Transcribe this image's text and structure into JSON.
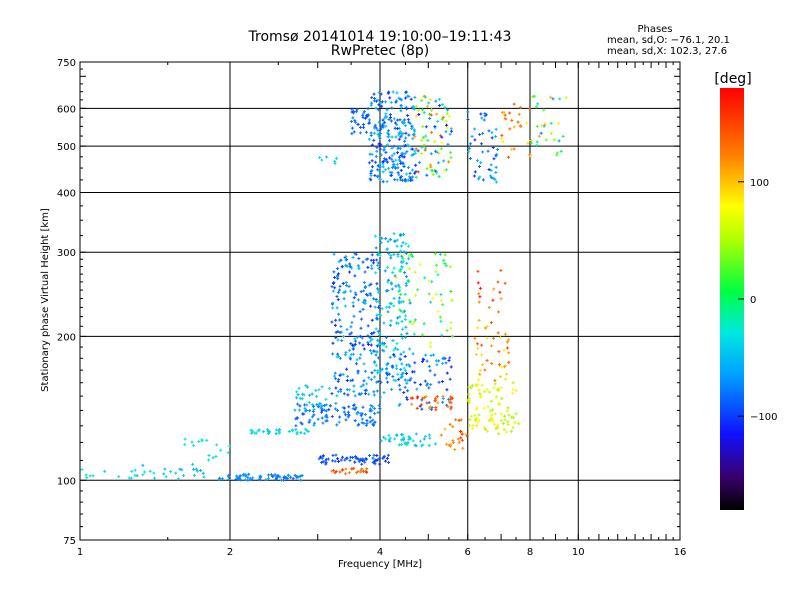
{
  "chart_data": {
    "type": "scatter",
    "title": "Tromsø 20141014 19:10:00–19:11:43",
    "subtitle": "RwPretec (8p)",
    "stats": {
      "heading": "Phases",
      "line_o": "mean, sd,O: −76.1, 20.1",
      "line_x": "mean, sd,X: 102.3, 27.6"
    },
    "xlabel": "Frequency [MHz]",
    "ylabel": "Stationary phase Virtual Height [km]",
    "x_scale": "log",
    "y_scale": "log",
    "xlim": [
      1,
      16
    ],
    "ylim": [
      75,
      750
    ],
    "grid": true,
    "x_gridlines": [
      2,
      4,
      6,
      8,
      10
    ],
    "y_gridlines": [
      100,
      200,
      300,
      400,
      500,
      600
    ],
    "x_tick_labels": [
      {
        "v": 1,
        "t": "1"
      },
      {
        "v": 2,
        "t": "2"
      },
      {
        "v": 4,
        "t": "4"
      },
      {
        "v": 6,
        "t": "6"
      },
      {
        "v": 8,
        "t": "8"
      },
      {
        "v": 10,
        "t": "10"
      },
      {
        "v": 16,
        "t": "16"
      }
    ],
    "y_tick_labels": [
      {
        "v": 75,
        "t": "75"
      },
      {
        "v": 100,
        "t": "100"
      },
      {
        "v": 200,
        "t": "200"
      },
      {
        "v": 300,
        "t": "300"
      },
      {
        "v": 400,
        "t": "400"
      },
      {
        "v": 500,
        "t": "500"
      },
      {
        "v": 600,
        "t": "600"
      },
      {
        "v": 750,
        "t": "750"
      }
    ],
    "colorbar": {
      "label": "[deg]",
      "range": [
        -180,
        180
      ],
      "ticks": [
        {
          "v": 100,
          "t": "100"
        },
        {
          "v": 0,
          "t": "0"
        },
        {
          "v": -100,
          "t": "−100"
        }
      ],
      "colormap": "rainbow-black-to-red"
    },
    "clusters": [
      {
        "x": [
          0.95,
          1.35
        ],
        "y": [
          100,
          106
        ],
        "phase": [
          -40,
          -20
        ],
        "n": 14
      },
      {
        "x": [
          1.3,
          1.8
        ],
        "y": [
          100,
          108
        ],
        "phase": [
          -60,
          -25
        ],
        "n": 22
      },
      {
        "x": [
          1.9,
          2.8
        ],
        "y": [
          100,
          103
        ],
        "phase": [
          -90,
          -60
        ],
        "n": 70
      },
      {
        "x": [
          1.6,
          1.8
        ],
        "y": [
          118,
          123
        ],
        "phase": [
          -40,
          -20
        ],
        "n": 8
      },
      {
        "x": [
          1.8,
          2.0
        ],
        "y": [
          110,
          120
        ],
        "phase": [
          -40,
          -20
        ],
        "n": 8
      },
      {
        "x": [
          2.2,
          2.9
        ],
        "y": [
          125,
          128
        ],
        "phase": [
          -50,
          -20
        ],
        "n": 30
      },
      {
        "x": [
          2.7,
          4.0
        ],
        "y": [
          130,
          145
        ],
        "phase": [
          -100,
          -60
        ],
        "n": 100
      },
      {
        "x": [
          2.7,
          3.2
        ],
        "y": [
          140,
          160
        ],
        "phase": [
          -60,
          -30
        ],
        "n": 30
      },
      {
        "x": [
          3.0,
          4.2
        ],
        "y": [
          108,
          113
        ],
        "phase": [
          -110,
          -80
        ],
        "n": 60
      },
      {
        "x": [
          3.2,
          3.8
        ],
        "y": [
          103,
          106
        ],
        "phase": [
          120,
          160
        ],
        "n": 25
      },
      {
        "x": [
          3.2,
          4.0
        ],
        "y": [
          150,
          300
        ],
        "phase": [
          -110,
          -40
        ],
        "n": 230
      },
      {
        "x": [
          3.9,
          4.6
        ],
        "y": [
          160,
          330
        ],
        "phase": [
          -80,
          -20
        ],
        "n": 170
      },
      {
        "x": [
          4.3,
          5.6
        ],
        "y": [
          190,
          300
        ],
        "phase": [
          -40,
          80
        ],
        "n": 60
      },
      {
        "x": [
          4.0,
          5.6
        ],
        "y": [
          140,
          185
        ],
        "phase": [
          -110,
          -50
        ],
        "n": 80
      },
      {
        "x": [
          4.5,
          5.6
        ],
        "y": [
          140,
          150
        ],
        "phase": [
          110,
          170
        ],
        "n": 30
      },
      {
        "x": [
          4.0,
          5.2
        ],
        "y": [
          118,
          125
        ],
        "phase": [
          -60,
          -20
        ],
        "n": 40
      },
      {
        "x": [
          5.3,
          6.0
        ],
        "y": [
          115,
          135
        ],
        "phase": [
          100,
          160
        ],
        "n": 25
      },
      {
        "x": [
          6.0,
          7.6
        ],
        "y": [
          125,
          160
        ],
        "phase": [
          40,
          90
        ],
        "n": 90
      },
      {
        "x": [
          6.2,
          7.3
        ],
        "y": [
          160,
          220
        ],
        "phase": [
          60,
          150
        ],
        "n": 40
      },
      {
        "x": [
          6.2,
          7.2
        ],
        "y": [
          225,
          275
        ],
        "phase": [
          110,
          170
        ],
        "n": 15
      },
      {
        "x": [
          3.8,
          4.7
        ],
        "y": [
          420,
          650
        ],
        "phase": [
          -110,
          -40
        ],
        "n": 250
      },
      {
        "x": [
          3.5,
          3.8
        ],
        "y": [
          530,
          600
        ],
        "phase": [
          -100,
          -70
        ],
        "n": 30
      },
      {
        "x": [
          4.7,
          5.6
        ],
        "y": [
          430,
          640
        ],
        "phase": [
          -130,
          160
        ],
        "n": 90
      },
      {
        "x": [
          6.0,
          6.9
        ],
        "y": [
          420,
          600
        ],
        "phase": [
          -110,
          -40
        ],
        "n": 50
      },
      {
        "x": [
          7.0,
          8.0
        ],
        "y": [
          460,
          620
        ],
        "phase": [
          80,
          150
        ],
        "n": 25
      },
      {
        "x": [
          8.0,
          9.5
        ],
        "y": [
          470,
          640
        ],
        "phase": [
          -80,
          120
        ],
        "n": 30
      },
      {
        "x": [
          3.0,
          3.3
        ],
        "y": [
          460,
          475
        ],
        "phase": [
          -60,
          -30
        ],
        "n": 6
      }
    ]
  }
}
